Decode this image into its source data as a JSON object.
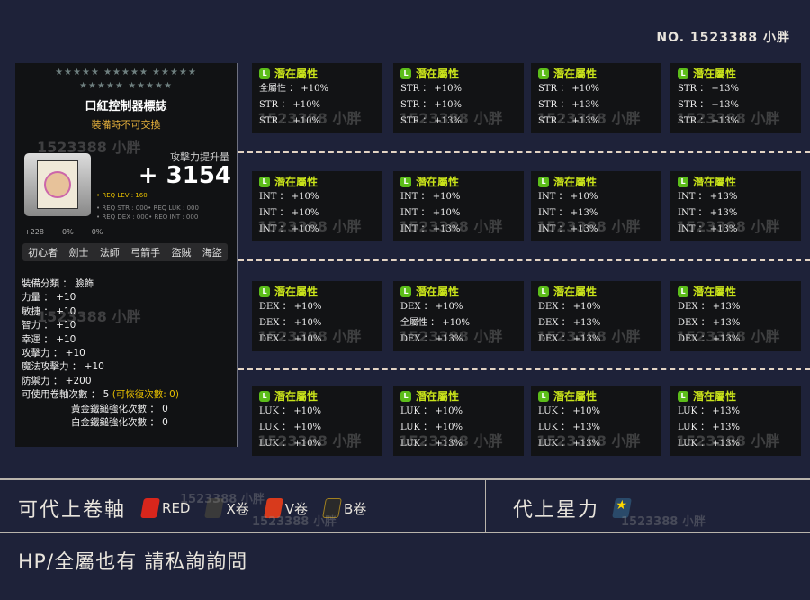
{
  "header": {
    "serial": "NO. 1523388 小胖"
  },
  "watermark": "1523388 小胖",
  "tooltip": {
    "stars_row1": "★★★★★ ★★★★★ ★★★★★",
    "stars_row2": "★★★★★ ★★★★★",
    "item_name": "口紅控制器標誌",
    "untradeable": "裝備時不可交換",
    "attack_label": "攻擊力提升量",
    "attack_value": "+ 3154",
    "req_lev": "• REQ LEV :   160",
    "req_str_luk": "• REQ STR :  000• REQ LUK :  000",
    "req_dex_int": "• REQ DEX :  000• REQ INT :  000",
    "small_stats": [
      "+228",
      "0%",
      "0%"
    ],
    "jobs": [
      "初心者",
      "劍士",
      "法師",
      "弓箭手",
      "盜賊",
      "海盜"
    ],
    "stats": [
      "裝備分類 ： 臉飾",
      "力量 ： +10",
      "敏捷 ： +10",
      "智力 ： +10",
      "幸運 ： +10",
      "攻擊力 ： +10",
      "魔法攻擊力 ： +10",
      "防禦力 ： +200"
    ],
    "scroll_count": "可使用卷軸次數 ： 5 ",
    "recover_count": "(可恢復次數: 0)",
    "gold_hammer": "黃金鐵鎚強化次數 ： 0",
    "platinum_hammer": "白金鐵鎚強化次數 ： 0"
  },
  "potential_title": "潛在屬性",
  "potential_icon_label": "L",
  "cards": [
    [
      [
        "全屬性 ： +10%",
        "STR ： +10%",
        "STR ： +10%"
      ],
      [
        "STR ： +10%",
        "STR ： +10%",
        "STR ： +13%"
      ],
      [
        "STR ： +10%",
        "STR ： +13%",
        "STR ： +13%"
      ],
      [
        "STR ： +13%",
        "STR ： +13%",
        "STR ： +13%"
      ]
    ],
    [
      [
        "INT ： +10%",
        "INT ： +10%",
        "INT ： +10%"
      ],
      [
        "INT ： +10%",
        "INT ： +10%",
        "INT ： +13%"
      ],
      [
        "INT ： +10%",
        "INT ： +13%",
        "INT ： +13%"
      ],
      [
        "INT ： +13%",
        "INT ： +13%",
        "INT ： +13%"
      ]
    ],
    [
      [
        "DEX ： +10%",
        "DEX ： +10%",
        "DEX ： +10%"
      ],
      [
        "DEX ： +10%",
        "全屬性 ： +10%",
        "DEX ： +13%"
      ],
      [
        "DEX ： +10%",
        "DEX ： +13%",
        "DEX ： +13%"
      ],
      [
        "DEX ： +13%",
        "DEX ： +13%",
        "DEX ： +13%"
      ]
    ],
    [
      [
        "LUK ： +10%",
        "LUK ： +10%",
        "LUK ： +10%"
      ],
      [
        "LUK ： +10%",
        "LUK ： +10%",
        "LUK ： +13%"
      ],
      [
        "LUK ： +10%",
        "LUK ： +13%",
        "LUK ： +13%"
      ],
      [
        "LUK ： +13%",
        "LUK ： +13%",
        "LUK ： +13%"
      ]
    ]
  ],
  "footer": {
    "scrolls_label": "可代上卷軸",
    "scrolls": [
      {
        "label": "RED",
        "color": "#d8261c"
      },
      {
        "label": "X卷",
        "color": "#3a3a3a"
      },
      {
        "label": "V卷",
        "color": "#d83a1c"
      },
      {
        "label": "B卷",
        "color": "#2a2a2a"
      }
    ],
    "starforce_label": "代上星力",
    "note": "HP/全屬也有 請私詢詢問"
  }
}
